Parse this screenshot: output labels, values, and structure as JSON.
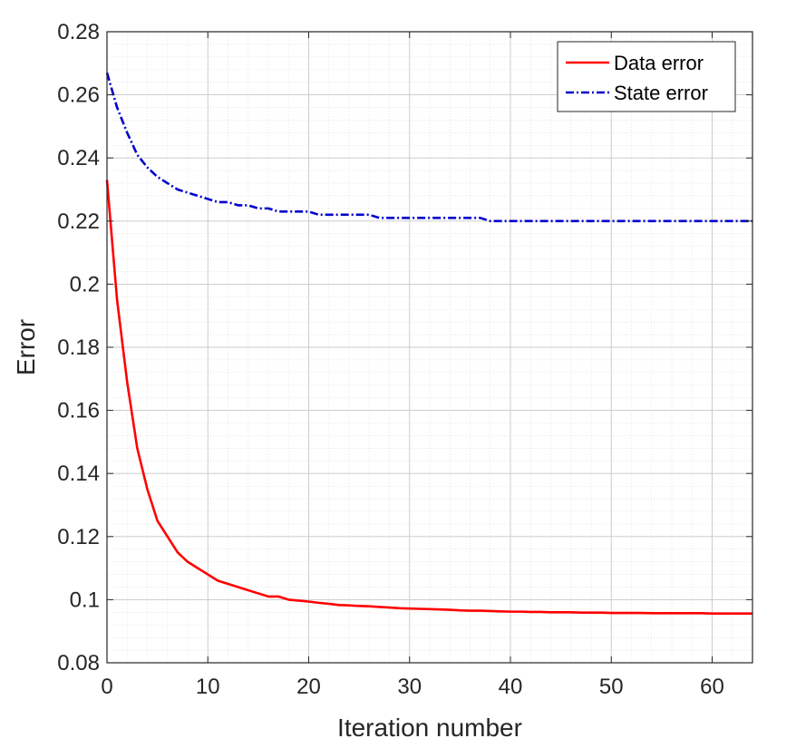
{
  "chart_data": {
    "type": "line",
    "title": "",
    "xlabel": "Iteration number",
    "ylabel": "Error",
    "xlim": [
      0,
      64
    ],
    "ylim": [
      0.08,
      0.28
    ],
    "xticks": [
      0,
      10,
      20,
      30,
      40,
      50,
      60
    ],
    "yticks": [
      0.08,
      0.1,
      0.12,
      0.14,
      0.16,
      0.18,
      0.2,
      0.22,
      0.24,
      0.26,
      0.28
    ],
    "xtick_labels": [
      "0",
      "10",
      "20",
      "30",
      "40",
      "50",
      "60"
    ],
    "ytick_labels": [
      "0.08",
      "0.1",
      "0.12",
      "0.14",
      "0.16",
      "0.18",
      "0.2",
      "0.22",
      "0.24",
      "0.26",
      "0.28"
    ],
    "grid": true,
    "minor_grid": true,
    "legend_position": "top-right",
    "series": [
      {
        "name": "Data error",
        "color": "#ff0000",
        "style": "solid",
        "x": [
          0,
          1,
          2,
          3,
          4,
          5,
          6,
          7,
          8,
          9,
          10,
          11,
          12,
          13,
          14,
          15,
          16,
          17,
          18,
          19,
          20,
          21,
          22,
          23,
          24,
          25,
          26,
          27,
          28,
          29,
          30,
          31,
          32,
          33,
          34,
          35,
          36,
          37,
          38,
          39,
          40,
          41,
          42,
          43,
          44,
          45,
          46,
          47,
          48,
          49,
          50,
          51,
          52,
          53,
          54,
          55,
          56,
          57,
          58,
          59,
          60,
          61,
          62,
          63,
          64
        ],
        "values": [
          0.233,
          0.195,
          0.169,
          0.148,
          0.135,
          0.125,
          0.12,
          0.115,
          0.112,
          0.11,
          0.108,
          0.106,
          0.105,
          0.104,
          0.103,
          0.102,
          0.101,
          0.101,
          0.1,
          0.0997,
          0.0994,
          0.099,
          0.0987,
          0.0983,
          0.0982,
          0.098,
          0.0979,
          0.0977,
          0.0975,
          0.0973,
          0.0972,
          0.0971,
          0.097,
          0.0969,
          0.0968,
          0.0966,
          0.0965,
          0.0965,
          0.0964,
          0.0963,
          0.0962,
          0.0962,
          0.0961,
          0.0961,
          0.096,
          0.096,
          0.096,
          0.0959,
          0.0959,
          0.0959,
          0.0958,
          0.0958,
          0.0958,
          0.0958,
          0.0957,
          0.0957,
          0.0957,
          0.0957,
          0.0957,
          0.0957,
          0.0956,
          0.0956,
          0.0956,
          0.0956,
          0.0956
        ]
      },
      {
        "name": "State error",
        "color": "#0000cc",
        "style": "dashdot",
        "x": [
          0,
          1,
          2,
          3,
          4,
          5,
          6,
          7,
          8,
          9,
          10,
          11,
          12,
          13,
          14,
          15,
          16,
          17,
          18,
          19,
          20,
          21,
          22,
          23,
          24,
          25,
          26,
          27,
          28,
          29,
          30,
          31,
          32,
          33,
          34,
          35,
          36,
          37,
          38,
          39,
          40,
          41,
          42,
          43,
          44,
          45,
          46,
          47,
          48,
          49,
          50,
          51,
          52,
          53,
          54,
          55,
          56,
          57,
          58,
          59,
          60,
          61,
          62,
          63,
          64
        ],
        "values": [
          0.267,
          0.256,
          0.248,
          0.241,
          0.237,
          0.234,
          0.232,
          0.23,
          0.229,
          0.228,
          0.227,
          0.226,
          0.226,
          0.225,
          0.225,
          0.224,
          0.224,
          0.223,
          0.223,
          0.223,
          0.223,
          0.222,
          0.222,
          0.222,
          0.222,
          0.222,
          0.222,
          0.221,
          0.221,
          0.221,
          0.221,
          0.221,
          0.221,
          0.221,
          0.221,
          0.221,
          0.221,
          0.221,
          0.22,
          0.22,
          0.22,
          0.22,
          0.22,
          0.22,
          0.22,
          0.22,
          0.22,
          0.22,
          0.22,
          0.22,
          0.22,
          0.22,
          0.22,
          0.22,
          0.22,
          0.22,
          0.22,
          0.22,
          0.22,
          0.22,
          0.22,
          0.22,
          0.22,
          0.22,
          0.22
        ]
      }
    ]
  }
}
